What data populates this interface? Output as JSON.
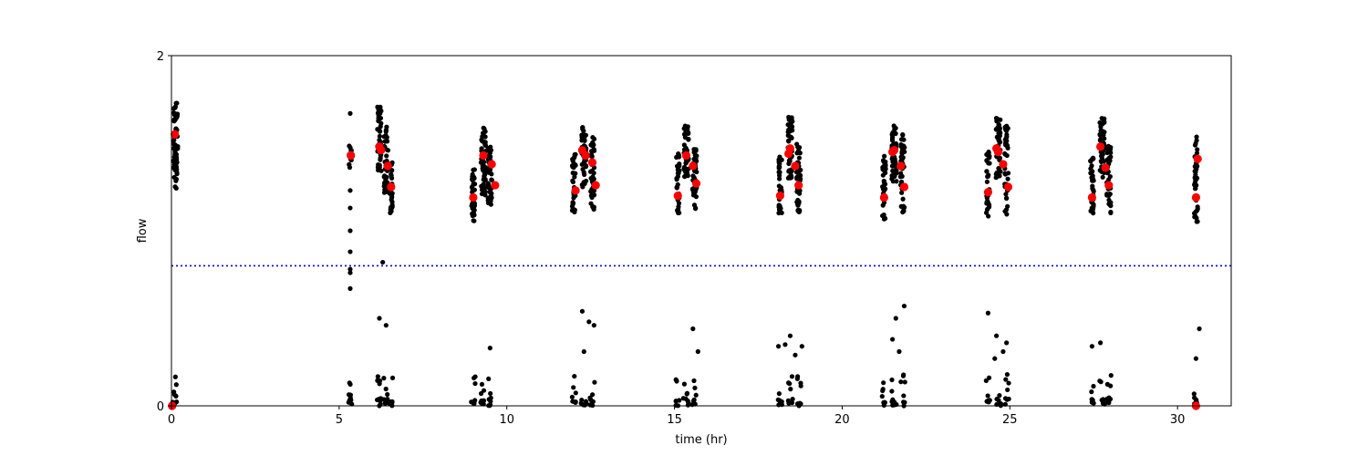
{
  "chart_data": {
    "type": "scatter",
    "xlabel": "time (hr)",
    "ylabel": "flow",
    "xlim": [
      0,
      31.6
    ],
    "ylim": [
      0,
      2
    ],
    "x_ticks": [
      0,
      5,
      10,
      15,
      20,
      25,
      30
    ],
    "y_ticks": [
      0,
      2
    ],
    "grid": false,
    "threshold": {
      "value": 0.8,
      "style": "dotted",
      "color": "#0000ff"
    },
    "colors": {
      "raw": "#000000",
      "mean": "#ff0000",
      "threshold": "#0000ff"
    },
    "series": [
      {
        "marker": "small-dot",
        "color": "#000000",
        "clusters": [
          {
            "x": 0.12,
            "width": 0.14,
            "high_range": [
              1.24,
              1.73
            ],
            "high_count": 60,
            "low_count": 8
          },
          {
            "x": 5.33,
            "width": 0.08,
            "high_range": [
              1.36,
              1.5
            ],
            "high_count": 14,
            "low_count": 10
          },
          {
            "x": 6.2,
            "width": 0.12,
            "high_range": [
              1.33,
              1.71
            ],
            "high_count": 45,
            "low_count": 10
          },
          {
            "x": 6.4,
            "width": 0.12,
            "high_range": [
              1.2,
              1.6
            ],
            "high_count": 40,
            "low_count": 10
          },
          {
            "x": 6.55,
            "width": 0.08,
            "high_range": [
              1.1,
              1.4
            ],
            "high_count": 30,
            "low_count": 8
          },
          {
            "x": 9.0,
            "width": 0.1,
            "high_range": [
              1.05,
              1.35
            ],
            "high_count": 35,
            "low_count": 8
          },
          {
            "x": 9.3,
            "width": 0.14,
            "high_range": [
              1.2,
              1.6
            ],
            "high_count": 50,
            "low_count": 8
          },
          {
            "x": 9.5,
            "width": 0.12,
            "high_range": [
              1.15,
              1.5
            ],
            "high_count": 40,
            "low_count": 8
          },
          {
            "x": 12.0,
            "width": 0.1,
            "high_range": [
              1.1,
              1.45
            ],
            "high_count": 35,
            "low_count": 8
          },
          {
            "x": 12.3,
            "width": 0.14,
            "high_range": [
              1.25,
              1.6
            ],
            "high_count": 50,
            "low_count": 8
          },
          {
            "x": 12.55,
            "width": 0.12,
            "high_range": [
              1.1,
              1.55
            ],
            "high_count": 40,
            "low_count": 8
          },
          {
            "x": 15.1,
            "width": 0.1,
            "high_range": [
              1.1,
              1.45
            ],
            "high_count": 35,
            "low_count": 8
          },
          {
            "x": 15.35,
            "width": 0.14,
            "high_range": [
              1.3,
              1.6
            ],
            "high_count": 50,
            "low_count": 8
          },
          {
            "x": 15.6,
            "width": 0.12,
            "high_range": [
              1.12,
              1.5
            ],
            "high_count": 40,
            "low_count": 8
          },
          {
            "x": 18.15,
            "width": 0.1,
            "high_range": [
              1.1,
              1.45
            ],
            "high_count": 35,
            "low_count": 8
          },
          {
            "x": 18.45,
            "width": 0.14,
            "high_range": [
              1.3,
              1.65
            ],
            "high_count": 50,
            "low_count": 8
          },
          {
            "x": 18.7,
            "width": 0.12,
            "high_range": [
              1.1,
              1.5
            ],
            "high_count": 40,
            "low_count": 8
          },
          {
            "x": 21.25,
            "width": 0.1,
            "high_range": [
              1.05,
              1.45
            ],
            "high_count": 35,
            "low_count": 8
          },
          {
            "x": 21.55,
            "width": 0.14,
            "high_range": [
              1.25,
              1.6
            ],
            "high_count": 50,
            "low_count": 8
          },
          {
            "x": 21.8,
            "width": 0.12,
            "high_range": [
              1.1,
              1.55
            ],
            "high_count": 40,
            "low_count": 8
          },
          {
            "x": 24.35,
            "width": 0.1,
            "high_range": [
              1.08,
              1.45
            ],
            "high_count": 35,
            "low_count": 8
          },
          {
            "x": 24.65,
            "width": 0.14,
            "high_range": [
              1.3,
              1.65
            ],
            "high_count": 50,
            "low_count": 8
          },
          {
            "x": 24.9,
            "width": 0.12,
            "high_range": [
              1.05,
              1.6
            ],
            "high_count": 40,
            "low_count": 8
          },
          {
            "x": 27.45,
            "width": 0.1,
            "high_range": [
              1.08,
              1.45
            ],
            "high_count": 35,
            "low_count": 8
          },
          {
            "x": 27.75,
            "width": 0.14,
            "high_range": [
              1.3,
              1.65
            ],
            "high_count": 50,
            "low_count": 8
          },
          {
            "x": 27.95,
            "width": 0.12,
            "high_range": [
              1.1,
              1.5
            ],
            "high_count": 40,
            "low_count": 8
          },
          {
            "x": 30.55,
            "width": 0.1,
            "high_range": [
              1.05,
              1.55
            ],
            "high_count": 45,
            "low_count": 8
          }
        ],
        "outliers": [
          {
            "x": 5.33,
            "y": 1.0
          },
          {
            "x": 5.33,
            "y": 0.88
          },
          {
            "x": 5.33,
            "y": 0.78
          },
          {
            "x": 5.33,
            "y": 0.67
          },
          {
            "x": 5.33,
            "y": 0.76
          },
          {
            "x": 5.33,
            "y": 1.13
          },
          {
            "x": 5.33,
            "y": 1.23
          },
          {
            "x": 5.33,
            "y": 1.67
          },
          {
            "x": 6.3,
            "y": 0.82
          },
          {
            "x": 6.2,
            "y": 0.5
          },
          {
            "x": 6.4,
            "y": 0.46
          },
          {
            "x": 9.5,
            "y": 0.33
          },
          {
            "x": 12.25,
            "y": 0.54
          },
          {
            "x": 12.45,
            "y": 0.48
          },
          {
            "x": 12.6,
            "y": 0.46
          },
          {
            "x": 12.3,
            "y": 0.31
          },
          {
            "x": 15.55,
            "y": 0.44
          },
          {
            "x": 15.7,
            "y": 0.31
          },
          {
            "x": 18.1,
            "y": 0.34
          },
          {
            "x": 18.3,
            "y": 0.35
          },
          {
            "x": 18.45,
            "y": 0.4
          },
          {
            "x": 18.6,
            "y": 0.29
          },
          {
            "x": 18.8,
            "y": 0.34
          },
          {
            "x": 21.6,
            "y": 0.5
          },
          {
            "x": 21.85,
            "y": 0.57
          },
          {
            "x": 21.5,
            "y": 0.38
          },
          {
            "x": 21.7,
            "y": 0.31
          },
          {
            "x": 24.35,
            "y": 0.53
          },
          {
            "x": 24.6,
            "y": 0.4
          },
          {
            "x": 24.8,
            "y": 0.31
          },
          {
            "x": 24.9,
            "y": 0.36
          },
          {
            "x": 24.55,
            "y": 0.27
          },
          {
            "x": 27.45,
            "y": 0.34
          },
          {
            "x": 27.7,
            "y": 0.36
          },
          {
            "x": 30.55,
            "y": 0.27
          },
          {
            "x": 30.65,
            "y": 0.44
          }
        ]
      },
      {
        "marker": "large-dot",
        "color": "#ff0000",
        "points": [
          {
            "x": 0.1,
            "y": 1.55
          },
          {
            "x": 0.02,
            "y": 0.0
          },
          {
            "x": 5.35,
            "y": 1.43
          },
          {
            "x": 6.2,
            "y": 1.48
          },
          {
            "x": 6.25,
            "y": 1.46
          },
          {
            "x": 6.45,
            "y": 1.37
          },
          {
            "x": 6.55,
            "y": 1.25
          },
          {
            "x": 9.0,
            "y": 1.19
          },
          {
            "x": 9.3,
            "y": 1.43
          },
          {
            "x": 9.55,
            "y": 1.38
          },
          {
            "x": 9.65,
            "y": 1.26
          },
          {
            "x": 12.05,
            "y": 1.23
          },
          {
            "x": 12.25,
            "y": 1.46
          },
          {
            "x": 12.35,
            "y": 1.43
          },
          {
            "x": 12.55,
            "y": 1.39
          },
          {
            "x": 12.65,
            "y": 1.26
          },
          {
            "x": 15.1,
            "y": 1.2
          },
          {
            "x": 15.35,
            "y": 1.43
          },
          {
            "x": 15.55,
            "y": 1.37
          },
          {
            "x": 15.65,
            "y": 1.27
          },
          {
            "x": 18.15,
            "y": 1.2
          },
          {
            "x": 18.4,
            "y": 1.44
          },
          {
            "x": 18.45,
            "y": 1.47
          },
          {
            "x": 18.6,
            "y": 1.37
          },
          {
            "x": 18.7,
            "y": 1.26
          },
          {
            "x": 21.25,
            "y": 1.19
          },
          {
            "x": 21.5,
            "y": 1.45
          },
          {
            "x": 21.55,
            "y": 1.46
          },
          {
            "x": 21.75,
            "y": 1.37
          },
          {
            "x": 21.85,
            "y": 1.25
          },
          {
            "x": 24.35,
            "y": 1.22
          },
          {
            "x": 24.6,
            "y": 1.47
          },
          {
            "x": 24.65,
            "y": 1.45
          },
          {
            "x": 24.8,
            "y": 1.38
          },
          {
            "x": 24.95,
            "y": 1.25
          },
          {
            "x": 27.45,
            "y": 1.19
          },
          {
            "x": 27.7,
            "y": 1.48
          },
          {
            "x": 27.85,
            "y": 1.36
          },
          {
            "x": 27.95,
            "y": 1.26
          },
          {
            "x": 30.55,
            "y": 1.19
          },
          {
            "x": 30.6,
            "y": 1.41
          },
          {
            "x": 30.55,
            "y": 0.0
          }
        ]
      }
    ]
  }
}
